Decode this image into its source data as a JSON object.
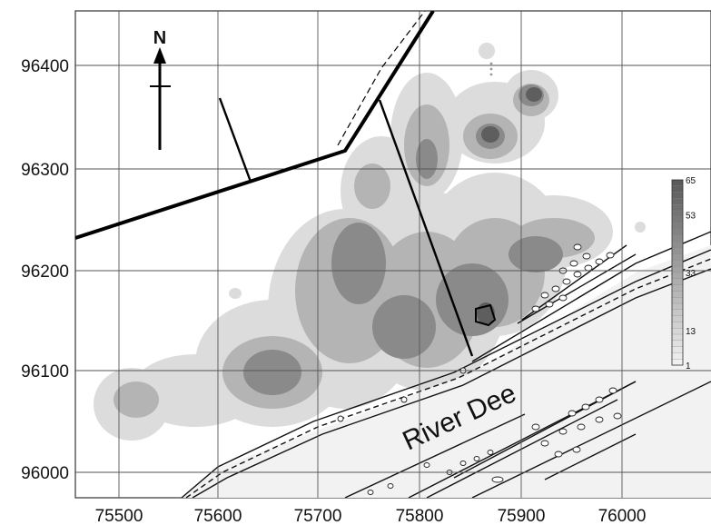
{
  "map": {
    "north_label": "N",
    "river_label": "River Dee",
    "x_ticks": [
      "75500",
      "75600",
      "75700",
      "75800",
      "75900",
      "76000"
    ],
    "y_ticks": [
      "96400",
      "96300",
      "96200",
      "96100",
      "96000"
    ],
    "legend": {
      "ticks": [
        "65",
        "53",
        "33",
        "13",
        "1"
      ],
      "min": 1,
      "max": 65
    },
    "colors": {
      "grid": "#555555",
      "density_low": "#dcdcdc",
      "density_mid": "#b4b4b4",
      "density_high": "#8a8a8a",
      "density_peak": "#5e5e5e",
      "river": "#f2f2f2"
    }
  }
}
